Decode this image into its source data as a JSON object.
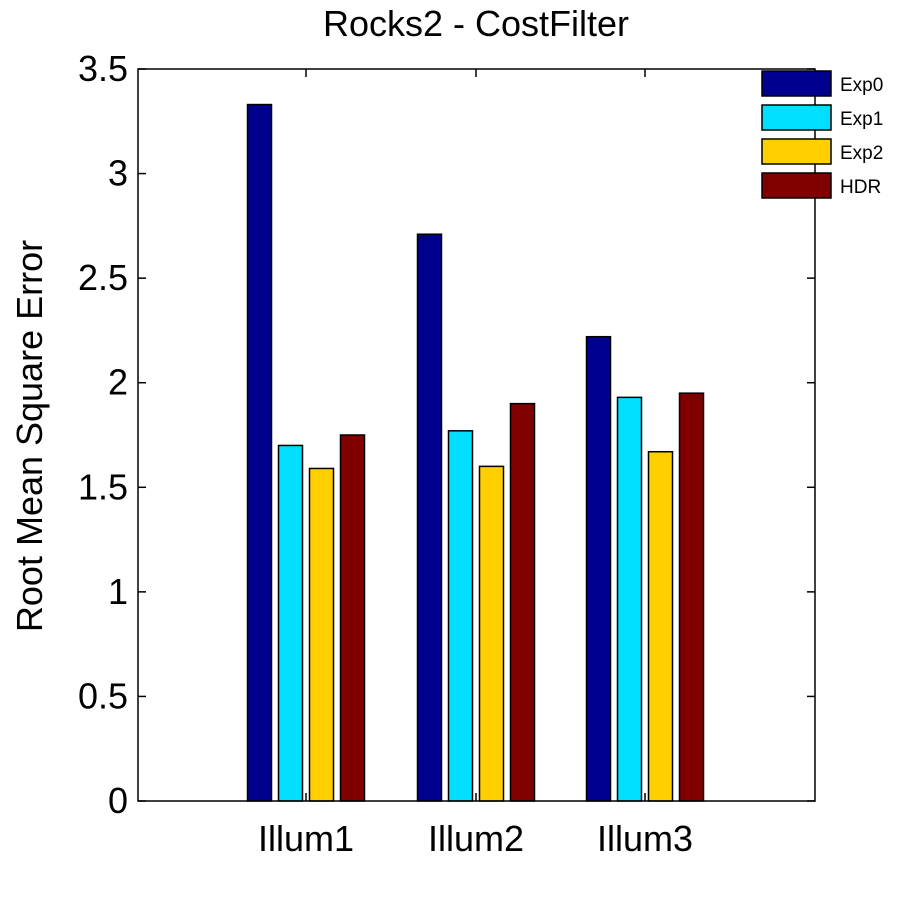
{
  "chart_data": {
    "type": "bar",
    "title": "Rocks2 - CostFilter",
    "xlabel": "",
    "ylabel": "Root Mean Square Error",
    "ylim": [
      0,
      3.5
    ],
    "yticks": [
      "0",
      "0.5",
      "1",
      "1.5",
      "2",
      "2.5",
      "3",
      "3.5"
    ],
    "categories": [
      "Illum1",
      "Illum2",
      "Illum3"
    ],
    "series": [
      {
        "name": "Exp0",
        "color": "#00008f",
        "values": [
          3.33,
          2.71,
          2.22
        ]
      },
      {
        "name": "Exp1",
        "color": "#00dfff",
        "values": [
          1.7,
          1.77,
          1.93
        ]
      },
      {
        "name": "Exp2",
        "color": "#ffcf00",
        "values": [
          1.59,
          1.6,
          1.67
        ]
      },
      {
        "name": "HDR",
        "color": "#800000",
        "values": [
          1.75,
          1.9,
          1.95
        ]
      }
    ],
    "legend_position": "top-right",
    "grid": false
  }
}
